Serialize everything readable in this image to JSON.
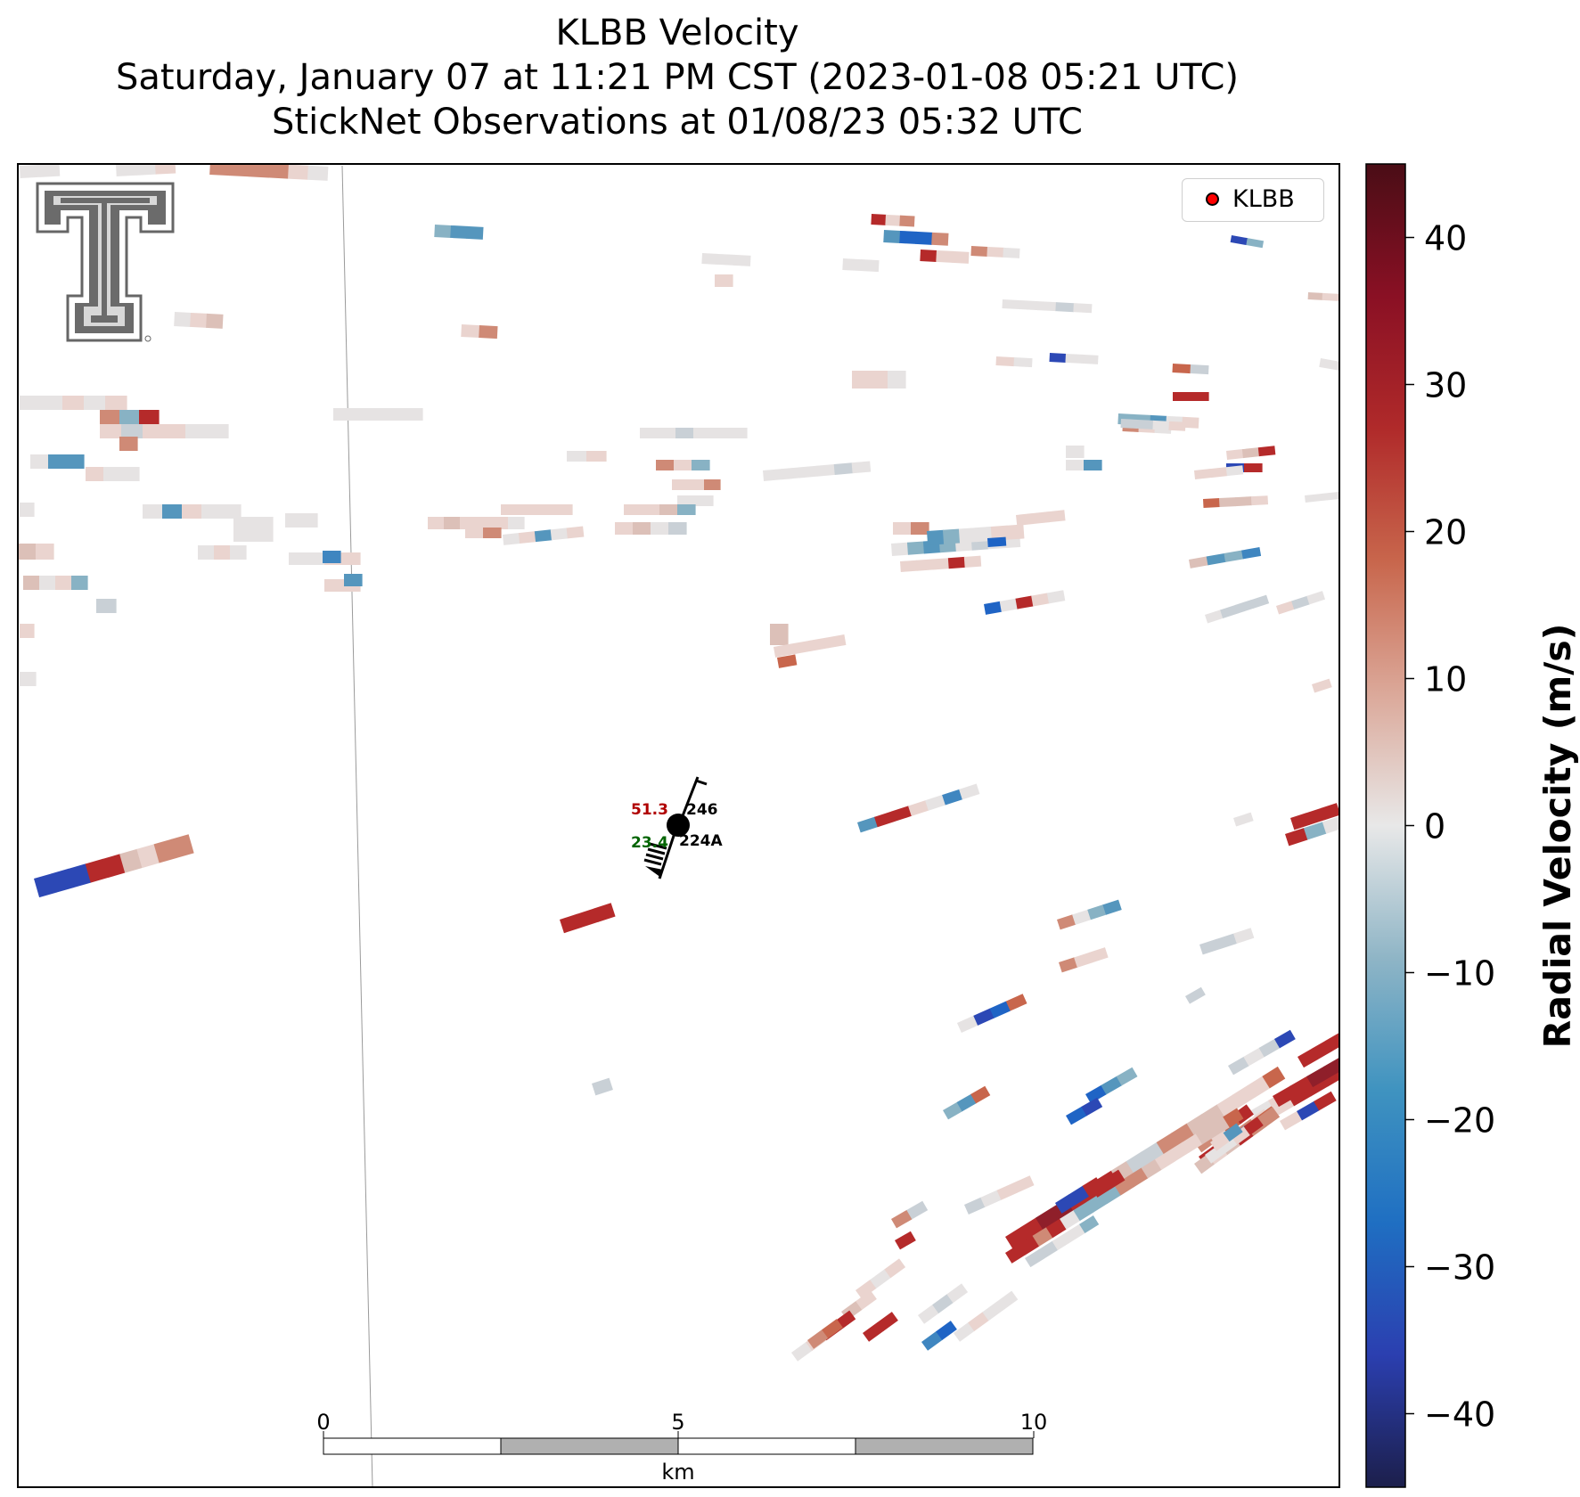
{
  "title": {
    "line1": "KLBB Velocity",
    "line2": "Saturday, January 07 at 11:21 PM CST (2023-01-08 05:21 UTC)",
    "line3": "StickNet Observations at 01/08/23 05:32 UTC"
  },
  "legend": {
    "label": "KLBB",
    "marker_color": "#ff0000"
  },
  "logo": {
    "name": "Texas Tech Double T",
    "color": "#6d6d6d"
  },
  "colorbar": {
    "label": "Radial Velocity (m/s)",
    "min": -45,
    "max": 45,
    "ticks": [
      40,
      30,
      20,
      10,
      0,
      -10,
      -20,
      -30,
      -40
    ],
    "tick_labels": [
      "40",
      "30",
      "20",
      "10",
      "0",
      "−10",
      "−20",
      "−30",
      "−40"
    ],
    "colormap": [
      "#1c1f4b",
      "#2b3fb0",
      "#1f6fc2",
      "#3f93c0",
      "#8fb5c6",
      "#e8e8e8",
      "#dba899",
      "#c8664c",
      "#b02a2a",
      "#8a1024",
      "#4a0d16"
    ]
  },
  "stations": [
    {
      "id": "246",
      "temperature": "51.3",
      "temperature_color": "#b00000"
    },
    {
      "id": "224A",
      "dewpoint": "23.4",
      "dewpoint_color": "#006400"
    }
  ],
  "scalebar": {
    "unit": "km",
    "tick_labels": [
      "0",
      "5",
      "10"
    ]
  },
  "velocity_field_note": ""
}
